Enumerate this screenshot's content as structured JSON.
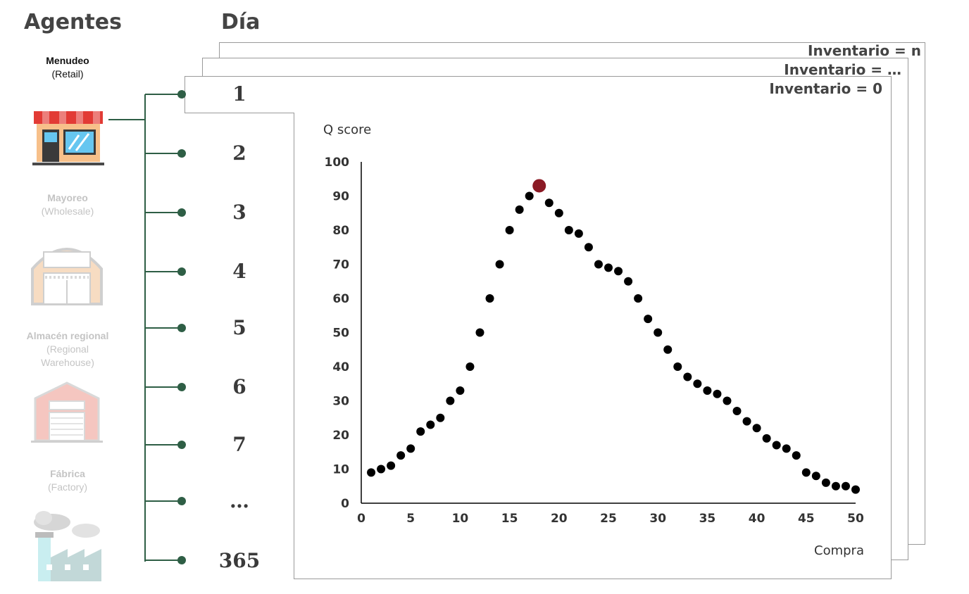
{
  "headers": {
    "agents": "Agentes",
    "day": "Día"
  },
  "agents": [
    {
      "name": "Menudeo",
      "sub": [
        "(Retail)"
      ],
      "active": true,
      "icon": "store-icon"
    },
    {
      "name": "Mayoreo",
      "sub": [
        "(Wholesale)"
      ],
      "active": false,
      "icon": "warehouse-icon"
    },
    {
      "name": "Almacén regional",
      "sub": [
        "(Regional",
        "Warehouse)"
      ],
      "active": false,
      "icon": "regional-warehouse-icon"
    },
    {
      "name": "Fábrica",
      "sub": [
        "(Factory)"
      ],
      "active": false,
      "icon": "factory-icon"
    }
  ],
  "inventory_labels": [
    "Inventario = n",
    "Inventario = …",
    "Inventario = 0"
  ],
  "days": [
    "1",
    "2",
    "3",
    "4",
    "5",
    "6",
    "7",
    "…",
    "365"
  ],
  "colors": {
    "timeline": "#2e5e45",
    "point": "#000000",
    "highlight": "#8b1a25",
    "frame_border": "#9a9a9a"
  },
  "chart_data": {
    "type": "scatter",
    "title": "",
    "xlabel": "Compra",
    "ylabel": "Q score",
    "xlim": [
      0,
      50
    ],
    "ylim": [
      0,
      100
    ],
    "xticks": [
      0,
      5,
      10,
      15,
      20,
      25,
      30,
      35,
      40,
      45,
      50
    ],
    "yticks": [
      0,
      10,
      20,
      30,
      40,
      50,
      60,
      70,
      80,
      90,
      100
    ],
    "grid": false,
    "x": [
      1,
      2,
      3,
      4,
      5,
      6,
      7,
      8,
      9,
      10,
      11,
      12,
      13,
      14,
      15,
      16,
      17,
      19,
      20,
      21,
      22,
      23,
      24,
      25,
      26,
      27,
      28,
      29,
      30,
      31,
      32,
      33,
      34,
      35,
      36,
      37,
      38,
      39,
      40,
      41,
      42,
      43,
      44,
      45,
      46,
      47,
      48,
      49,
      50
    ],
    "y": [
      9,
      10,
      11,
      14,
      16,
      21,
      23,
      25,
      30,
      33,
      40,
      50,
      60,
      70,
      80,
      86,
      90,
      88,
      85,
      80,
      79,
      75,
      70,
      69,
      68,
      65,
      60,
      54,
      50,
      45,
      40,
      37,
      35,
      33,
      32,
      30,
      27,
      24,
      22,
      19,
      17,
      16,
      14,
      9,
      8,
      6,
      5,
      5,
      4
    ],
    "highlight": {
      "x": 18,
      "y": 93
    }
  }
}
